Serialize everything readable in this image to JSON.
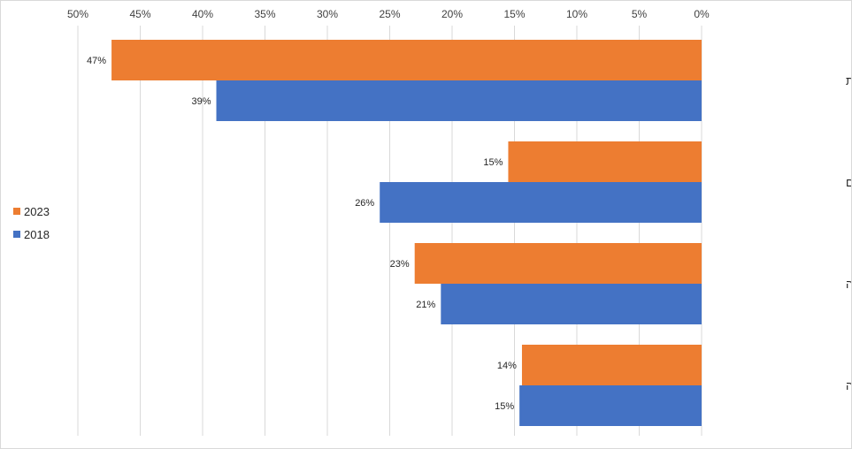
{
  "chart_data": {
    "type": "bar",
    "orientation": "horizontal",
    "x_reversed": true,
    "categories": [
      "שכר והטבות",
      "הגשמה עצמית ואופק קידום",
      "גמישות וחופש פעולה",
      "סביבת עבודה נעימה"
    ],
    "series": [
      {
        "name": "2023",
        "values": [
          47.3,
          15.5,
          23.0,
          14.4
        ],
        "labels": [
          "47%",
          "15%",
          "23%",
          "14%"
        ],
        "color": "#ed7d31"
      },
      {
        "name": "2018",
        "values": [
          38.9,
          25.8,
          20.9,
          14.6
        ],
        "labels": [
          "39%",
          "26%",
          "21%",
          "15%"
        ],
        "color": "#4472c4"
      }
    ],
    "xlim": [
      0,
      50
    ],
    "x_ticks": [
      "0%",
      "5%",
      "10%",
      "15%",
      "20%",
      "25%",
      "30%",
      "35%",
      "40%",
      "45%",
      "50%"
    ],
    "x_tick_values": [
      0,
      5,
      10,
      15,
      20,
      25,
      30,
      35,
      40,
      45,
      50
    ],
    "axis_position": "top",
    "grid": true,
    "gridline_color": "#d9d9d9",
    "legend_position": "left",
    "title": "",
    "xlabel": "",
    "ylabel": ""
  }
}
